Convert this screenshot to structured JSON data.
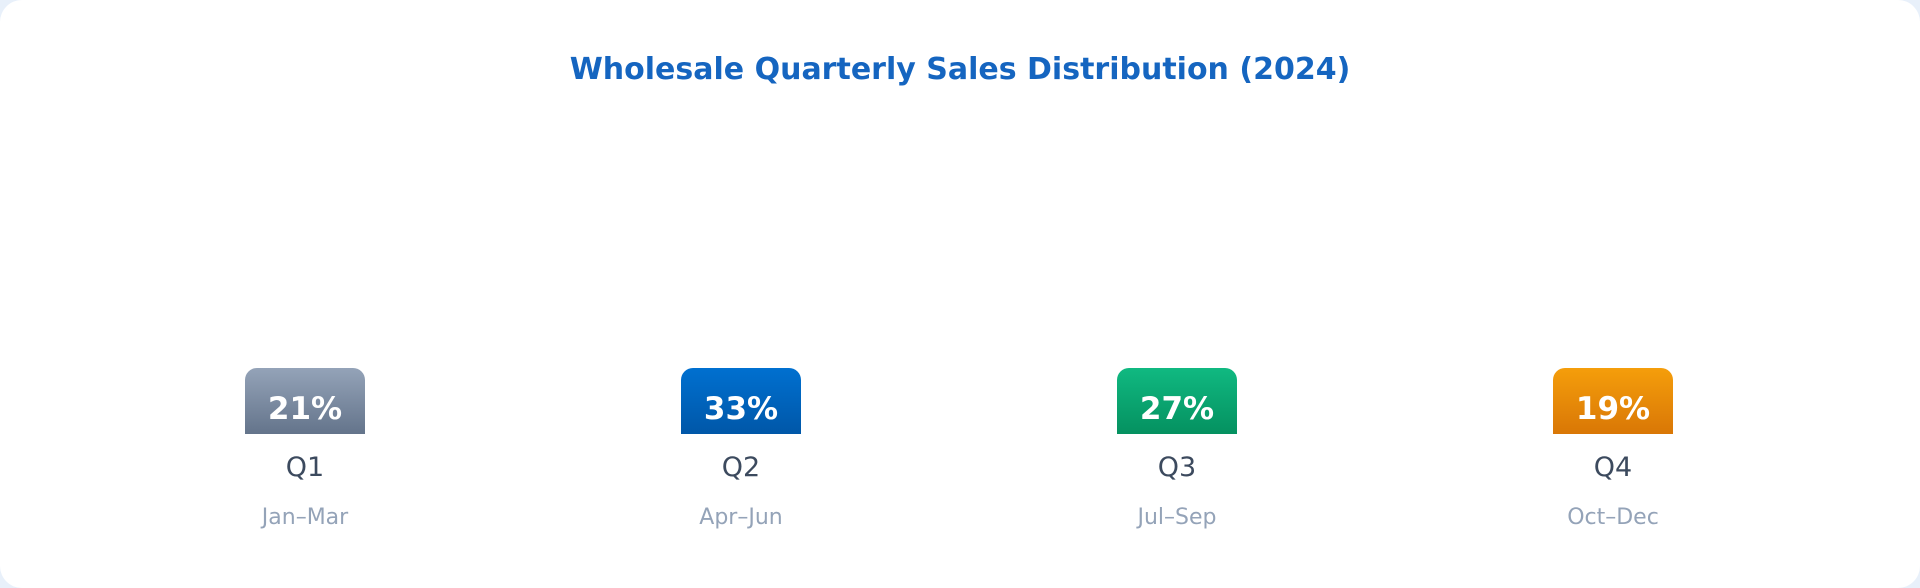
{
  "chart_data": {
    "type": "bar",
    "title": "Wholesale Quarterly Sales Distribution (2024)",
    "categories": [
      "Q1",
      "Q2",
      "Q3",
      "Q4"
    ],
    "subcategories": [
      "Jan–Mar",
      "Apr–Jun",
      "Jul–Sep",
      "Oct–Dec"
    ],
    "values": [
      21,
      33,
      27,
      19
    ],
    "value_labels": [
      "21%",
      "33%",
      "27%",
      "19%"
    ],
    "colors": [
      [
        "#94a3b8",
        "#64748b"
      ],
      [
        "#0070d0",
        "#0057a8"
      ],
      [
        "#10b981",
        "#059160"
      ],
      [
        "#f59e0b",
        "#d97706"
      ]
    ],
    "grid": false
  }
}
